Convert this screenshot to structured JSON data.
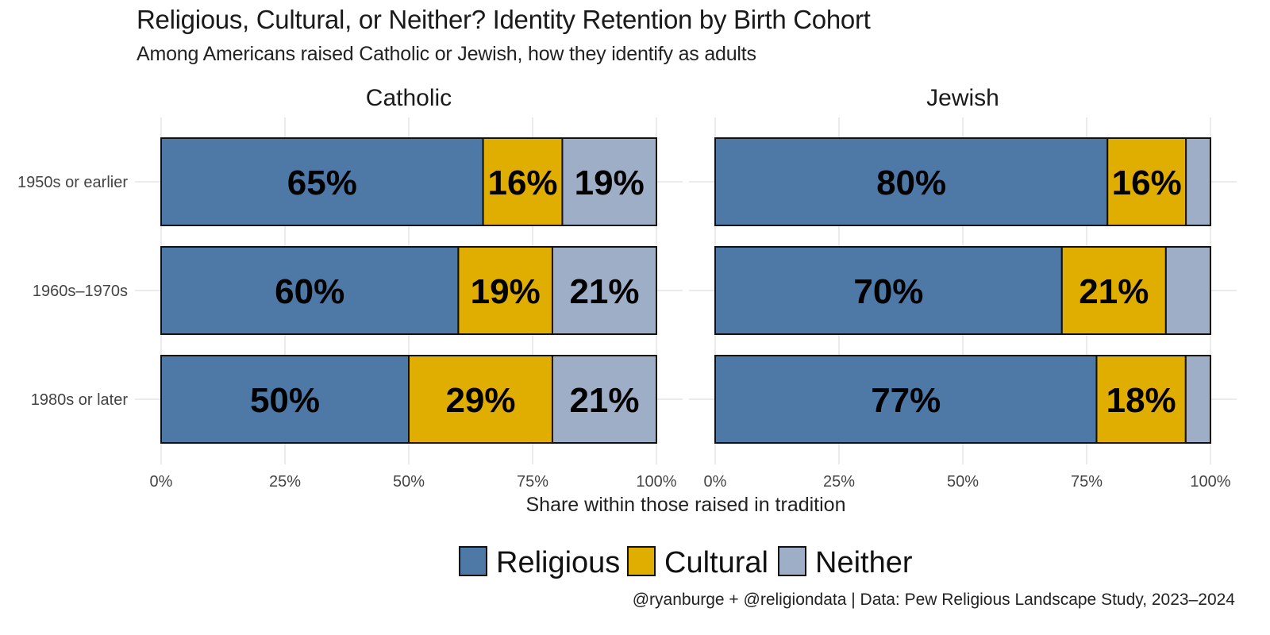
{
  "title": "Religious, Cultural, or Neither? Identity Retention by Birth Cohort",
  "subtitle": "Among Americans raised Catholic or Jewish, how they identify as adults",
  "caption": "@ryanburge + @religiondata | Data: Pew Religious Landscape Study, 2023–2024",
  "chart_data": {
    "type": "bar",
    "orientation": "horizontal",
    "stacked": true,
    "xlabel": "Share within those raised in tradition",
    "xlim": [
      0,
      1
    ],
    "x_ticks": [
      "0%",
      "25%",
      "50%",
      "75%",
      "100%"
    ],
    "grid": true,
    "legend_position": "bottom",
    "categories": [
      "1950s or earlier",
      "1960s–1970s",
      "1980s or later"
    ],
    "series_names": [
      "Religious",
      "Cultural",
      "Neither"
    ],
    "colors": {
      "Religious": "#4e78a6",
      "Cultural": "#e0ae00",
      "Neither": "#9eaec7"
    },
    "panels": [
      {
        "name": "Catholic",
        "values": [
          [
            65,
            16,
            19
          ],
          [
            60,
            19,
            21
          ],
          [
            50,
            29,
            21
          ]
        ],
        "labels": [
          [
            "65%",
            "16%",
            "19%"
          ],
          [
            "60%",
            "19%",
            "21%"
          ],
          [
            "50%",
            "29%",
            "21%"
          ]
        ]
      },
      {
        "name": "Jewish",
        "values": [
          [
            80,
            16,
            5
          ],
          [
            70,
            21,
            9
          ],
          [
            77,
            18,
            5
          ]
        ],
        "labels": [
          [
            "80%",
            "16%",
            ""
          ],
          [
            "70%",
            "21%",
            ""
          ],
          [
            "77%",
            "18%",
            ""
          ]
        ]
      }
    ]
  }
}
